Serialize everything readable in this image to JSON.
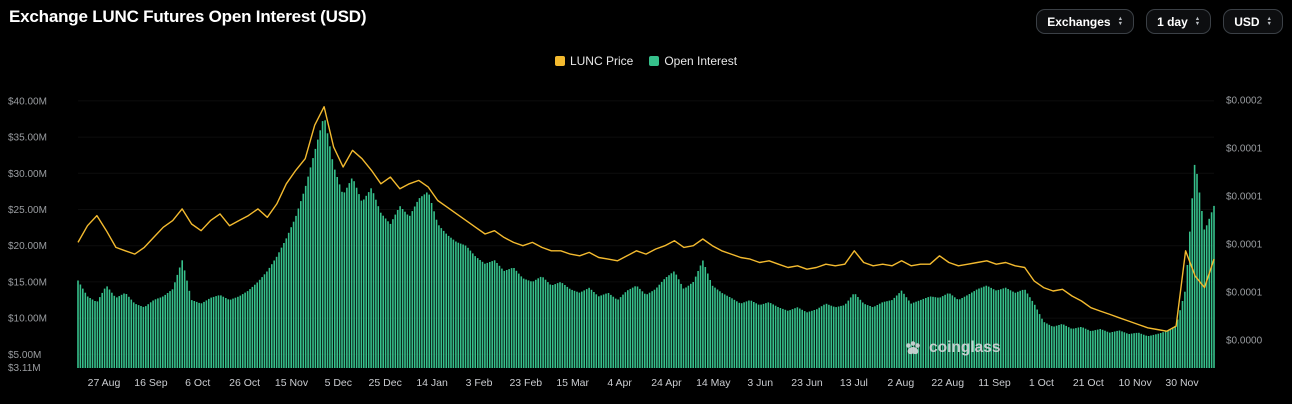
{
  "header": {
    "title": "Exchange LUNC Futures Open Interest (USD)"
  },
  "controls": [
    {
      "label": "Exchanges"
    },
    {
      "label": "1 day"
    },
    {
      "label": "USD"
    }
  ],
  "legend": [
    {
      "label": "LUNC Price",
      "color": "#F3BA2F"
    },
    {
      "label": "Open Interest",
      "color": "#36C08B"
    }
  ],
  "watermark": "coinglass",
  "colors": {
    "background": "#000000",
    "price_line": "#F3BA2F",
    "open_interest_bar": "#36C08B",
    "axis_label": "#9a9da1",
    "x_label": "#caccd0"
  },
  "chart_data": {
    "type": "bar",
    "title": "Exchange LUNC Futures Open Interest (USD)",
    "legend_position": "top-center",
    "grid": false,
    "x_tick_labels": [
      "27 Aug",
      "16 Sep",
      "6 Oct",
      "26 Oct",
      "15 Nov",
      "5 Dec",
      "25 Dec",
      "14 Jan",
      "3 Feb",
      "23 Feb",
      "15 Mar",
      "4 Apr",
      "24 Apr",
      "14 May",
      "3 Jun",
      "23 Jun",
      "13 Jul",
      "2 Aug",
      "22 Aug",
      "11 Sep",
      "1 Oct",
      "21 Oct",
      "10 Nov",
      "30 Nov"
    ],
    "y_left": {
      "unit": "USD (millions)",
      "min": 3.11,
      "max": 41.5,
      "tick_values": [
        40,
        35,
        30,
        25,
        20,
        15,
        10,
        5,
        3.11
      ],
      "tick_labels": [
        "$40.00M",
        "$35.00M",
        "$30.00M",
        "$25.00M",
        "$20.00M",
        "$15.00M",
        "$10.00M",
        "$5.00M",
        "$3.11M"
      ]
    },
    "y_right": {
      "unit": "USD",
      "min": 4e-05,
      "max": 0.000206,
      "tick_labels": [
        "$0.0002",
        "$0.0001",
        "$0.0001",
        "$0.0001",
        "$0.0001",
        "$0.0000"
      ]
    },
    "series": [
      {
        "name": "Open Interest",
        "type": "bar",
        "axis": "left",
        "color": "#36C08B",
        "values_unit": "million USD",
        "values": [
          15.2,
          13.0,
          12.2,
          14.5,
          12.8,
          13.5,
          12.0,
          11.5,
          12.5,
          13.0,
          14.0,
          18.0,
          12.5,
          12.0,
          12.8,
          13.2,
          12.5,
          13.0,
          13.8,
          15.0,
          16.5,
          18.5,
          21.0,
          24.0,
          28.0,
          33.0,
          38.0,
          31.0,
          27.0,
          29.5,
          26.0,
          28.0,
          24.5,
          23.0,
          25.5,
          24.0,
          26.5,
          27.5,
          23.0,
          21.5,
          20.5,
          20.0,
          18.5,
          17.5,
          18.0,
          16.5,
          17.0,
          15.5,
          15.0,
          15.8,
          14.5,
          15.0,
          14.0,
          13.5,
          14.2,
          13.0,
          13.5,
          12.5,
          13.8,
          14.5,
          13.2,
          14.0,
          15.5,
          16.5,
          14.0,
          15.0,
          18.0,
          14.5,
          13.5,
          12.8,
          12.0,
          12.5,
          11.8,
          12.2,
          11.5,
          11.0,
          11.5,
          10.8,
          11.2,
          12.0,
          11.5,
          11.8,
          13.5,
          12.0,
          11.5,
          12.2,
          12.5,
          13.8,
          12.0,
          12.5,
          13.0,
          12.8,
          13.5,
          12.5,
          13.2,
          14.0,
          14.5,
          13.8,
          14.2,
          13.5,
          14.0,
          12.0,
          9.5,
          8.8,
          9.2,
          8.5,
          8.8,
          8.2,
          8.5,
          8.0,
          8.3,
          7.8,
          8.0,
          7.5,
          7.8,
          8.2,
          9.0,
          14.0,
          32.0,
          22.0,
          25.5
        ]
      },
      {
        "name": "LUNC Price",
        "type": "line",
        "axis": "right",
        "color": "#F3BA2F",
        "values_unit": "USD",
        "values": [
          0.000115,
          0.000125,
          0.000131,
          0.000122,
          0.000112,
          0.00011,
          0.000108,
          0.000112,
          0.000118,
          0.000124,
          0.000128,
          0.000135,
          0.000126,
          0.000122,
          0.000128,
          0.000132,
          0.000125,
          0.000128,
          0.000131,
          0.000135,
          0.00013,
          0.000138,
          0.00015,
          0.000158,
          0.000165,
          0.000185,
          0.000196,
          0.000172,
          0.00016,
          0.00017,
          0.000165,
          0.000158,
          0.00015,
          0.000154,
          0.000147,
          0.00015,
          0.000152,
          0.000148,
          0.00014,
          0.000136,
          0.000132,
          0.000128,
          0.000124,
          0.00012,
          0.000122,
          0.000118,
          0.000115,
          0.000113,
          0.000115,
          0.000112,
          0.00011,
          0.00011,
          0.000108,
          0.000107,
          0.000109,
          0.000106,
          0.000105,
          0.000104,
          0.000107,
          0.00011,
          0.000108,
          0.000111,
          0.000113,
          0.000116,
          0.000112,
          0.000113,
          0.000117,
          0.000113,
          0.00011,
          0.000108,
          0.000106,
          0.000105,
          0.000103,
          0.000104,
          0.000102,
          0.0001,
          0.000101,
          9.9e-05,
          0.0001,
          0.000102,
          0.000101,
          0.000102,
          0.00011,
          0.000103,
          0.000101,
          0.000102,
          0.000101,
          0.000104,
          0.000101,
          0.000102,
          0.000102,
          0.000107,
          0.000103,
          0.000101,
          0.000102,
          0.000103,
          0.000104,
          0.000102,
          0.000103,
          0.000101,
          0.0001,
          9.2e-05,
          8.8e-05,
          8.6e-05,
          8.7e-05,
          8.3e-05,
          8e-05,
          7.6e-05,
          7.4e-05,
          7.2e-05,
          7e-05,
          6.8e-05,
          6.6e-05,
          6.4e-05,
          6.3e-05,
          6.2e-05,
          6.5e-05,
          0.00011,
          9.5e-05,
          8.8e-05,
          0.000105
        ]
      }
    ]
  }
}
